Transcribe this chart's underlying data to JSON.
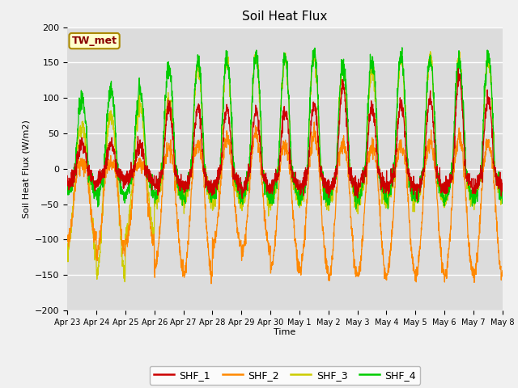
{
  "title": "Soil Heat Flux",
  "ylabel": "Soil Heat Flux (W/m2)",
  "xlabel": "Time",
  "ylim": [
    -200,
    200
  ],
  "yticks": [
    -200,
    -150,
    -100,
    -50,
    0,
    50,
    100,
    150,
    200
  ],
  "colors": {
    "SHF_1": "#cc0000",
    "SHF_2": "#ff8800",
    "SHF_3": "#cccc00",
    "SHF_4": "#00cc00"
  },
  "bg_color": "#dcdcdc",
  "fig_color": "#f0f0f0",
  "annotation_text": "TW_met",
  "annotation_box_color": "#ffffcc",
  "annotation_text_color": "#880000",
  "tick_labels": [
    "Apr 23",
    "Apr 24",
    "Apr 25",
    "Apr 26",
    "Apr 27",
    "Apr 28",
    "Apr 29",
    "Apr 30",
    "May 1",
    "May 2",
    "May 3",
    "May 4",
    "May 5",
    "May 6",
    "May 7",
    "May 8"
  ],
  "n_days": 15,
  "pts_per_day": 144
}
